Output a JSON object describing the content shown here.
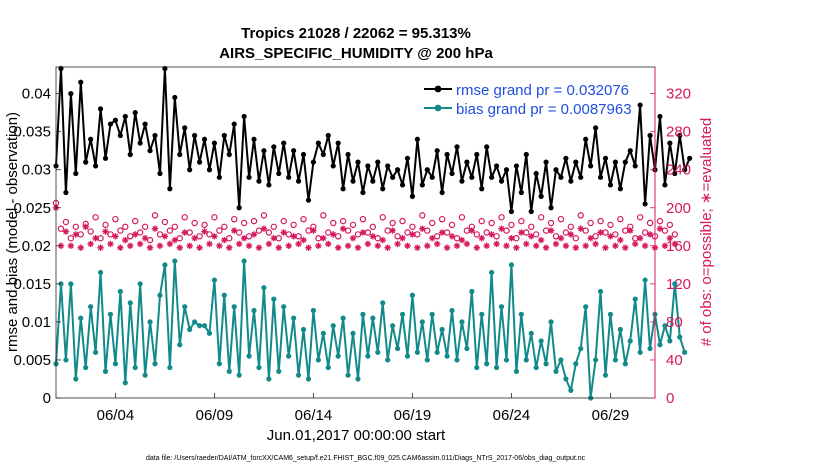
{
  "chart_data": {
    "type": "line",
    "title": "Tropics 21028 / 22062 = 95.313%",
    "subtitle": "AIRS_SPECIFIC_HUMIDITY @ 200 hPa",
    "xlabel": "Jun.01,2017 00:00:00 start",
    "ylabel": "rmse and bias (model - observation)",
    "y2label": "# of obs: o=possible; ∗=evaluated",
    "footnote": "data file: /Users/raeder/DAI/ATM_forcXX/CAM6_setup/f.e21.FHIST_BGC.f09_025.CAM6assim.011/Diags_NTrS_2017-06/obs_diag_output.nc",
    "x_range_days": [
      1,
      31.25
    ],
    "xticks": [
      {
        "day": 4,
        "label": "06/04"
      },
      {
        "day": 9,
        "label": "06/09"
      },
      {
        "day": 14,
        "label": "06/14"
      },
      {
        "day": 19,
        "label": "06/19"
      },
      {
        "day": 24,
        "label": "06/24"
      },
      {
        "day": 29,
        "label": "06/29"
      }
    ],
    "ylim": [
      0,
      0.0435
    ],
    "yticks": [
      "0",
      "0.005",
      "0.01",
      "0.015",
      "0.02",
      "0.025",
      "0.03",
      "0.035",
      "0.04"
    ],
    "y2lim": [
      0,
      348
    ],
    "y2ticks": [
      "0",
      "40",
      "80",
      "120",
      "160",
      "200",
      "240",
      "280",
      "320"
    ],
    "series": [
      {
        "name": "rmse grand pr = 0.032076",
        "axis": "left",
        "color": "#000000",
        "values": [
          0.0305,
          0.0433,
          0.027,
          0.04,
          0.0295,
          0.0415,
          0.031,
          0.034,
          0.0305,
          0.038,
          0.0315,
          0.036,
          0.0365,
          0.0345,
          0.037,
          0.032,
          0.0375,
          0.0335,
          0.036,
          0.0325,
          0.0345,
          0.0295,
          0.0433,
          0.0275,
          0.0395,
          0.032,
          0.0355,
          0.03,
          0.0345,
          0.031,
          0.034,
          0.03,
          0.0335,
          0.029,
          0.0345,
          0.032,
          0.036,
          0.025,
          0.037,
          0.029,
          0.034,
          0.0285,
          0.0325,
          0.028,
          0.033,
          0.0295,
          0.0335,
          0.029,
          0.0325,
          0.0285,
          0.032,
          0.026,
          0.031,
          0.0335,
          0.032,
          0.0345,
          0.0305,
          0.0335,
          0.0275,
          0.032,
          0.0285,
          0.031,
          0.027,
          0.0305,
          0.0285,
          0.031,
          0.0275,
          0.0305,
          0.029,
          0.03,
          0.028,
          0.0315,
          0.0265,
          0.034,
          0.028,
          0.03,
          0.029,
          0.0325,
          0.027,
          0.032,
          0.0295,
          0.033,
          0.0285,
          0.031,
          0.029,
          0.032,
          0.0275,
          0.033,
          0.029,
          0.0305,
          0.0285,
          0.03,
          0.0245,
          0.0305,
          0.027,
          0.032,
          0.0245,
          0.0295,
          0.0265,
          0.031,
          0.025,
          0.03,
          0.029,
          0.0315,
          0.0285,
          0.031,
          0.029,
          0.034,
          0.0305,
          0.0355,
          0.029,
          0.0315,
          0.028,
          0.031,
          0.0275,
          0.031,
          0.0325,
          0.0305,
          0.0385,
          0.0255,
          0.0345,
          0.03,
          0.037,
          0.028,
          0.0335,
          0.0295,
          0.0345,
          0.03,
          0.0315
        ]
      },
      {
        "name": "bias grand pr = 0.0087963",
        "axis": "left",
        "color": "#138a8a",
        "values": [
          0.0045,
          0.015,
          0.005,
          0.015,
          0.0025,
          0.0105,
          0.004,
          0.012,
          0.006,
          0.0165,
          0.0035,
          0.011,
          0.0045,
          0.014,
          0.002,
          0.0125,
          0.004,
          0.015,
          0.003,
          0.01,
          0.0045,
          0.0135,
          0.0175,
          0.004,
          0.018,
          0.007,
          0.012,
          0.009,
          0.01,
          0.0095,
          0.0095,
          0.0085,
          0.0155,
          0.0045,
          0.0135,
          0.0035,
          0.012,
          0.003,
          0.018,
          0.0055,
          0.0115,
          0.004,
          0.0145,
          0.0025,
          0.013,
          0.0035,
          0.012,
          0.0055,
          0.0105,
          0.003,
          0.009,
          0.0025,
          0.0115,
          0.005,
          0.0085,
          0.004,
          0.0095,
          0.0055,
          0.0105,
          0.003,
          0.0085,
          0.0025,
          0.011,
          0.0055,
          0.0105,
          0.006,
          0.0125,
          0.005,
          0.0095,
          0.0065,
          0.011,
          0.0055,
          0.0135,
          0.006,
          0.01,
          0.005,
          0.011,
          0.006,
          0.009,
          0.0055,
          0.0115,
          0.005,
          0.01,
          0.0065,
          0.014,
          0.004,
          0.011,
          0.0045,
          0.0165,
          0.004,
          0.012,
          0.005,
          0.0175,
          0.0035,
          0.011,
          0.005,
          0.0085,
          0.004,
          0.0075,
          0.0045,
          0.01,
          0.0035,
          0.005,
          0.0025,
          0.001,
          0.0045,
          0.0065,
          0.012,
          0.0,
          0.005,
          0.014,
          0.003,
          0.011,
          0.005,
          0.009,
          0.0045,
          0.0075,
          0.013,
          0.006,
          0.0155,
          0.0065,
          0.011,
          0.007,
          0.0095,
          0.0075,
          0.015,
          0.008,
          0.006
        ]
      },
      {
        "name": "possible (o)",
        "axis": "right",
        "color": "#d6185e",
        "marker": "o",
        "values": [
          205,
          178,
          185,
          168,
          180,
          172,
          183,
          175,
          190,
          168,
          182,
          172,
          188,
          176,
          180,
          170,
          186,
          174,
          180,
          166,
          192,
          172,
          185,
          176,
          180,
          168,
          190,
          174,
          184,
          170,
          182,
          172,
          190,
          176,
          180,
          168,
          188,
          174,
          184,
          170,
          186,
          176,
          192,
          174,
          180,
          168,
          186,
          172,
          182,
          170,
          188,
          176,
          180,
          168,
          192,
          174,
          184,
          170,
          186,
          176,
          182,
          172,
          188,
          174,
          180,
          168,
          190,
          176,
          184,
          170,
          186,
          174,
          180,
          172,
          192,
          176,
          184,
          170,
          188,
          174,
          182,
          168,
          190,
          176,
          180,
          172,
          186,
          174,
          184,
          170,
          190,
          176,
          182,
          168,
          186,
          174,
          180,
          172,
          190,
          176,
          184,
          170,
          188,
          174,
          180,
          168,
          192,
          176,
          184,
          170,
          186,
          174,
          182,
          172,
          188,
          176,
          180,
          168,
          190,
          174,
          184,
          170,
          186,
          176,
          182,
          172
        ]
      },
      {
        "name": "evaluated (*)",
        "axis": "right",
        "color": "#d6185e",
        "marker": "*",
        "values": [
          200,
          160,
          175,
          160,
          172,
          158,
          180,
          162,
          168,
          158,
          175,
          162,
          170,
          158,
          166,
          160,
          172,
          162,
          168,
          158,
          178,
          160,
          170,
          162,
          166,
          158,
          174,
          160,
          168,
          158,
          175,
          162,
          170,
          160,
          166,
          158,
          176,
          162,
          168,
          160,
          172,
          158,
          178,
          162,
          168,
          158,
          174,
          160,
          170,
          162,
          166,
          158,
          176,
          160,
          168,
          162,
          172,
          158,
          178,
          160,
          168,
          158,
          174,
          162,
          170,
          160,
          166,
          158,
          176,
          162,
          168,
          160,
          172,
          158,
          178,
          160,
          168,
          162,
          174,
          158,
          170,
          160,
          166,
          162,
          176,
          158,
          168,
          160,
          172,
          162,
          178,
          160,
          168,
          158,
          174,
          162,
          170,
          160,
          166,
          158,
          176,
          162,
          168,
          160,
          172,
          158,
          178,
          160,
          168,
          162,
          174,
          158,
          170,
          160,
          166,
          158,
          176,
          162,
          168,
          160,
          172,
          158,
          178,
          160,
          168,
          162
        ]
      }
    ]
  }
}
